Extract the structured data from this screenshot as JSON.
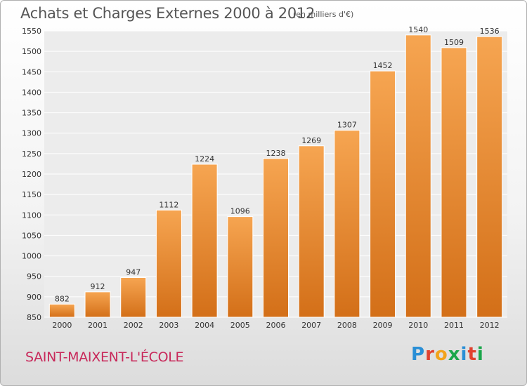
{
  "title": "Achats et Charges Externes 2000 à 2012",
  "subtitle": "(en milliers d'€)",
  "location": "SAINT-MAIXENT-L'ÉCOLE",
  "logo_letters": [
    "P",
    "r",
    "o",
    "x",
    "i",
    "t",
    "i"
  ],
  "logo_colors": [
    "#2a8fd6",
    "#e0412f",
    "#f2a31b",
    "#1aa64a",
    "#2a8fd6",
    "#e0412f",
    "#1aa64a"
  ],
  "chart_data": {
    "type": "bar",
    "categories": [
      "2000",
      "2001",
      "2002",
      "2003",
      "2004",
      "2005",
      "2006",
      "2007",
      "2008",
      "2009",
      "2010",
      "2011",
      "2012"
    ],
    "values": [
      882,
      912,
      947,
      1112,
      1224,
      1096,
      1238,
      1269,
      1307,
      1452,
      1540,
      1509,
      1536
    ],
    "ylim": [
      850,
      1550
    ],
    "yticks": [
      850,
      900,
      950,
      1000,
      1050,
      1100,
      1150,
      1200,
      1250,
      1300,
      1350,
      1400,
      1450,
      1500,
      1550
    ],
    "grid": true,
    "bar_color_top": "#f6a551",
    "bar_color_bottom": "#d36f18"
  }
}
